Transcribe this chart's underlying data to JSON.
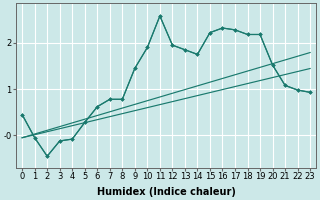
{
  "xlabel": "Humidex (Indice chaleur)",
  "bg_color": "#cce8e8",
  "line_color": "#1a7a6e",
  "grid_color": "#ffffff",
  "x_data": [
    0,
    1,
    2,
    3,
    4,
    5,
    6,
    7,
    8,
    9,
    10,
    11,
    12,
    13,
    14,
    15,
    16,
    17,
    18,
    19,
    20,
    21,
    22,
    23
  ],
  "y_line1": [
    0.45,
    -0.05,
    -0.45,
    -0.12,
    -0.08,
    0.28,
    0.62,
    0.78,
    0.78,
    1.45,
    1.9,
    2.58,
    1.95,
    1.85,
    1.75,
    2.22,
    2.32,
    2.28,
    2.18,
    2.18,
    1.52,
    1.08,
    0.98,
    0.93
  ],
  "y_line2": [
    0.45,
    -0.05,
    -0.45,
    -0.12,
    -0.08,
    0.28,
    0.62,
    0.78,
    0.78,
    1.45,
    1.9,
    2.58,
    1.95,
    1.85,
    1.75,
    2.22,
    2.32,
    2.28,
    2.18,
    2.18,
    1.52,
    1.08,
    0.98,
    0.93
  ],
  "y_lin_upper": [
    -0.05,
    0.03,
    0.11,
    0.19,
    0.27,
    0.35,
    0.43,
    0.51,
    0.59,
    0.67,
    0.75,
    0.83,
    0.91,
    0.99,
    1.07,
    1.15,
    1.23,
    1.31,
    1.39,
    1.47,
    1.55,
    1.63,
    1.71,
    1.79
  ],
  "y_lin_lower": [
    -0.05,
    0.015,
    0.08,
    0.145,
    0.21,
    0.275,
    0.34,
    0.405,
    0.47,
    0.535,
    0.6,
    0.665,
    0.73,
    0.795,
    0.86,
    0.925,
    0.99,
    1.055,
    1.12,
    1.185,
    1.25,
    1.315,
    1.38,
    1.445
  ],
  "ytick_vals": [
    0,
    1,
    2
  ],
  "ytick_labels": [
    "-0",
    "1",
    "2"
  ],
  "ylim": [
    -0.7,
    2.85
  ],
  "xlim": [
    -0.5,
    23.5
  ],
  "label_fontsize": 7,
  "tick_fontsize": 6
}
